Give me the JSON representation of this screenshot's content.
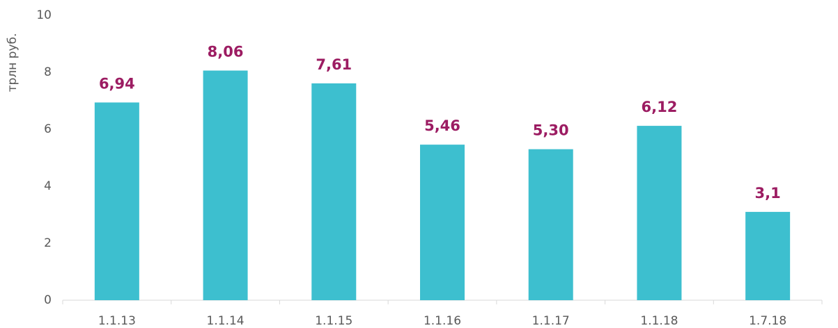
{
  "chart_data": {
    "type": "bar",
    "y_label": "трлн руб.",
    "categories": [
      "1.1.13",
      "1.1.14",
      "1.1.15",
      "1.1.16",
      "1.1.17",
      "1.1.18",
      "1.7.18"
    ],
    "values": [
      6.94,
      8.06,
      7.61,
      5.46,
      5.3,
      6.12,
      3.1
    ],
    "value_labels": [
      "6,94",
      "8,06",
      "7,61",
      "5,46",
      "5,30",
      "6,12",
      "3,1"
    ],
    "color": "#3dbfcf",
    "label_color": "#9c1c62",
    "ylim": [
      0,
      10
    ],
    "yticks": [
      0,
      2,
      4,
      6,
      8,
      10
    ],
    "grid": false
  }
}
